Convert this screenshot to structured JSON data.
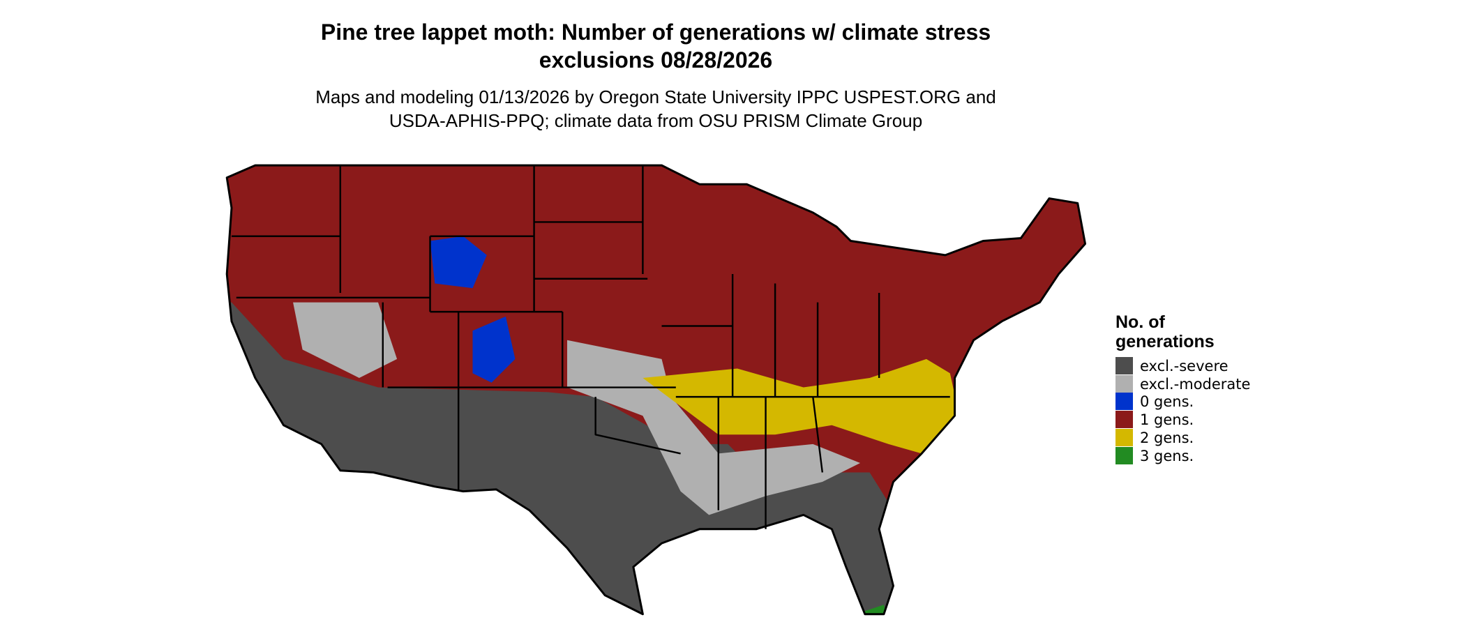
{
  "title": [
    "Pine tree lappet moth: Number of generations w/ climate stress",
    "exclusions 08/28/2026"
  ],
  "subtitle": [
    "Maps and modeling 01/13/2026 by Oregon State University IPPC USPEST.ORG and",
    "USDA-APHIS-PPQ; climate data from OSU PRISM Climate Group"
  ],
  "legend": {
    "title": [
      "No. of",
      "generations"
    ],
    "items": [
      {
        "label": "excl.-severe",
        "color": "#4d4d4d"
      },
      {
        "label": "excl.-moderate",
        "color": "#b0b0b0"
      },
      {
        "label": "0 gens.",
        "color": "#0033cc"
      },
      {
        "label": "1 gens.",
        "color": "#8b1a1a"
      },
      {
        "label": "2 gens.",
        "color": "#d4b800"
      },
      {
        "label": "3 gens.",
        "color": "#228b22"
      }
    ]
  }
}
